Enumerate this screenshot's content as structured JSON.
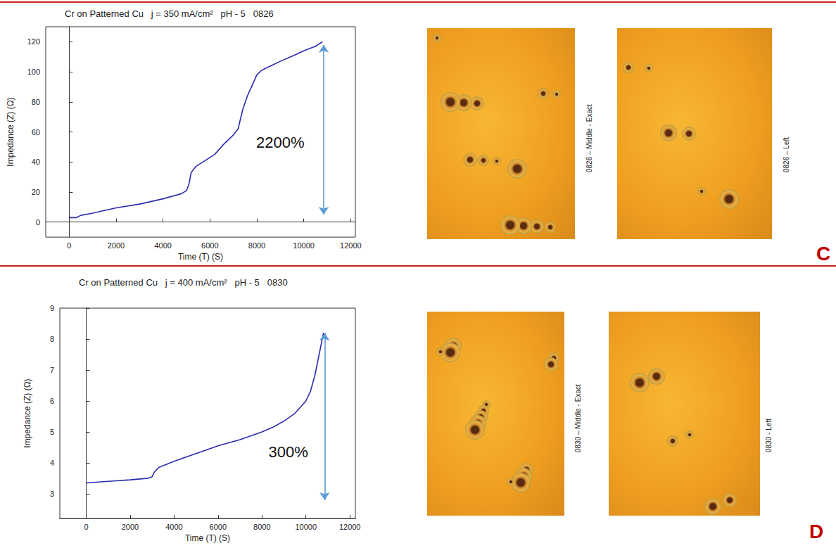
{
  "chart_data": [
    {
      "type": "line",
      "title": "Cr on Patterned Cu   j = 350 mA/cm²   pH - 5   0826",
      "x_label": "Time (T) (S)",
      "y_label": "Impedance (Z) (Ω)",
      "x": [
        0,
        300,
        500,
        1000,
        2000,
        3000,
        4000,
        4800,
        5000,
        5100,
        5200,
        5400,
        5800,
        6200,
        6600,
        7000,
        7200,
        7400,
        7600,
        7800,
        8000,
        8200,
        8600,
        9000,
        9600,
        10000,
        10500,
        10800
      ],
      "values": [
        3,
        3,
        4.5,
        6,
        9.5,
        12,
        15.5,
        19,
        21,
        25,
        33,
        37,
        41,
        45,
        52,
        58,
        62,
        75,
        84,
        91,
        98,
        101,
        104,
        107,
        111,
        114,
        117,
        120
      ],
      "color": "#2b2bb0",
      "xlim": [
        -1000,
        12200
      ],
      "ylim": [
        -10,
        130
      ],
      "xticks": [
        0,
        2000,
        4000,
        6000,
        8000,
        10000,
        12000
      ],
      "yticks": [
        0,
        20,
        40,
        60,
        80,
        100,
        120
      ],
      "grid": false,
      "annotation": {
        "text": "2200%",
        "x": 9000,
        "y": 53
      },
      "arrow": {
        "x": 10850,
        "y": [
          5,
          118
        ],
        "color": "#5b9bd5"
      }
    },
    {
      "type": "line",
      "title": "Cr on Patterned Cu   j = 400 mA/cm²   pH - 5   0830",
      "x_label": "Time (T) (S)",
      "y_label": "Impedance (Z) (Ω)",
      "x": [
        0,
        1000,
        2000,
        2800,
        3000,
        3100,
        3300,
        4000,
        5000,
        6000,
        7000,
        8000,
        8500,
        9000,
        9500,
        10000,
        10200,
        10400,
        10600,
        10800
      ],
      "values": [
        3.35,
        3.4,
        3.45,
        3.5,
        3.55,
        3.7,
        3.85,
        4.05,
        4.3,
        4.55,
        4.75,
        5.0,
        5.15,
        5.35,
        5.6,
        6.0,
        6.3,
        6.8,
        7.5,
        8.2
      ],
      "color": "#2b2bb0",
      "xlim": [
        -1200,
        12250
      ],
      "ylim": [
        2.2,
        9
      ],
      "xticks": [
        0,
        2000,
        4000,
        6000,
        8000,
        10000,
        12000
      ],
      "yticks": [
        3,
        4,
        5,
        6,
        7,
        8,
        9
      ],
      "grid": false,
      "annotation": {
        "text": "300%",
        "x": 9200,
        "y": 4.35
      },
      "arrow": {
        "x": 10850,
        "y": [
          2.8,
          8.2
        ],
        "color": "#5b9bd5"
      }
    }
  ],
  "panels": [
    {
      "letter": "C",
      "images": [
        "0826 – Middle - Exact",
        "0826 – Left"
      ]
    },
    {
      "letter": "D",
      "images": [
        "0830 – Middle - Exact",
        "0830 - Left"
      ]
    }
  ]
}
